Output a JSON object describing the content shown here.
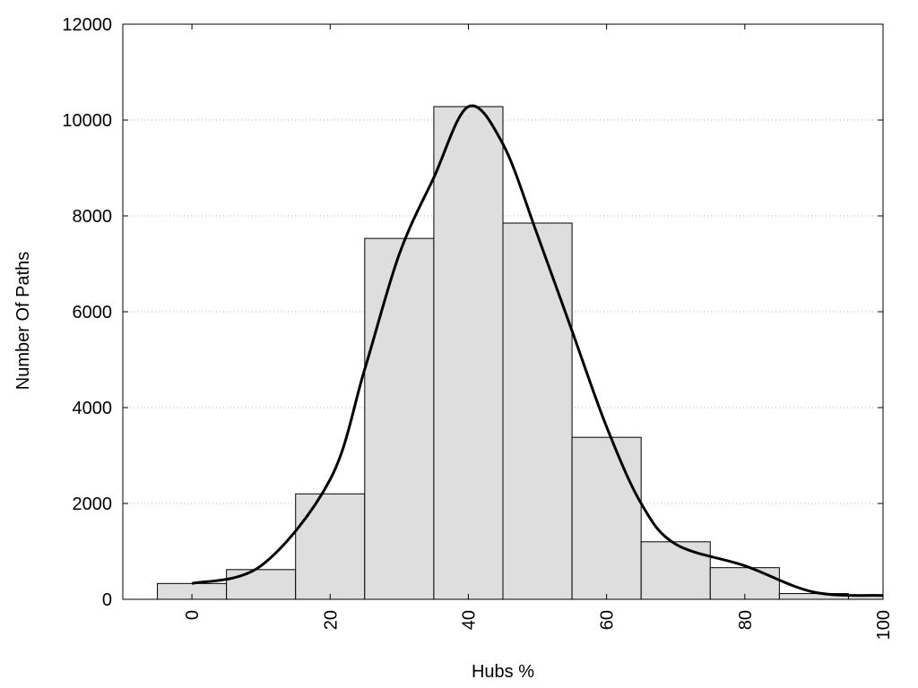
{
  "chart_data": {
    "type": "bar",
    "title": "",
    "xlabel": "Hubs %",
    "ylabel": "Number Of Paths",
    "xlim": [
      -10,
      100
    ],
    "ylim": [
      0,
      12000
    ],
    "xticks": [
      0,
      20,
      40,
      60,
      80,
      100
    ],
    "yticks": [
      0,
      2000,
      4000,
      6000,
      8000,
      10000,
      12000
    ],
    "grid": "horizontal dotted",
    "bar_color": "#dedede",
    "bar_edge_color": "#000000",
    "curve_color": "#000000",
    "bins": [
      {
        "center": 0,
        "value": 330
      },
      {
        "center": 10,
        "value": 620
      },
      {
        "center": 20,
        "value": 2200
      },
      {
        "center": 30,
        "value": 7530
      },
      {
        "center": 40,
        "value": 10280
      },
      {
        "center": 50,
        "value": 7850
      },
      {
        "center": 60,
        "value": 3380
      },
      {
        "center": 70,
        "value": 1200
      },
      {
        "center": 80,
        "value": 660
      },
      {
        "center": 90,
        "value": 120
      },
      {
        "center": 100,
        "value": 80
      }
    ],
    "bin_width": 10,
    "density_curve": {
      "x": [
        0,
        10,
        20,
        25,
        30,
        35,
        40,
        45,
        50,
        55,
        60,
        65,
        70,
        80,
        90,
        100
      ],
      "y": [
        330,
        700,
        2500,
        4800,
        7200,
        8800,
        10280,
        9500,
        7600,
        5600,
        3600,
        2000,
        1150,
        700,
        150,
        80
      ]
    }
  }
}
